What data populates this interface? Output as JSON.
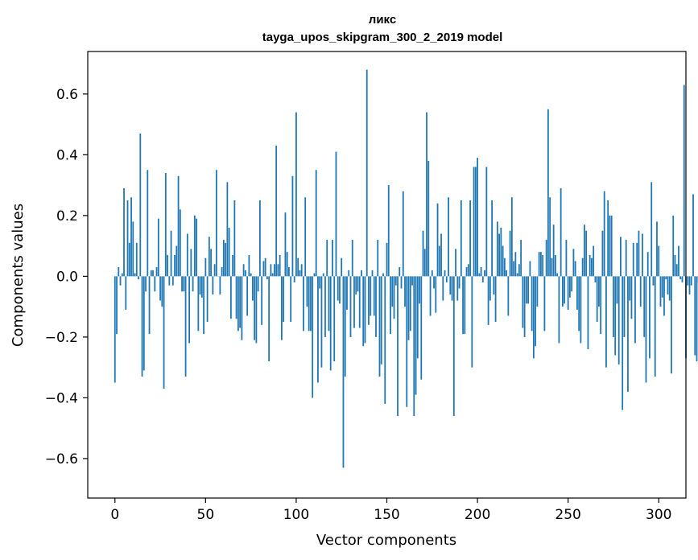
{
  "chart_data": {
    "type": "bar",
    "title": "ликс",
    "subtitle": "tayga_upos_skipgram_300_2_2019 model",
    "xlabel": "Vector components",
    "ylabel": "Components values",
    "xlim": [
      -15,
      315
    ],
    "ylim": [
      -0.73,
      0.74
    ],
    "xticks": [
      0,
      50,
      100,
      150,
      200,
      250,
      300
    ],
    "xtick_labels": [
      "0",
      "50",
      "100",
      "150",
      "200",
      "250",
      "300"
    ],
    "yticks": [
      -0.6,
      -0.4,
      -0.2,
      0.0,
      0.2,
      0.4,
      0.6
    ],
    "ytick_labels": [
      "−0.6",
      "−0.4",
      "−0.2",
      "0.0",
      "0.2",
      "0.4",
      "0.6"
    ],
    "bar_color": "#1f77b4",
    "values": [
      -0.35,
      -0.19,
      0.03,
      -0.03,
      0.01,
      0.29,
      -0.11,
      0.25,
      0.11,
      0.26,
      0.18,
      0.01,
      0.11,
      -0.01,
      0.47,
      -0.33,
      -0.31,
      -0.05,
      0.35,
      -0.19,
      0.02,
      0.02,
      -0.05,
      0.03,
      0.19,
      -0.08,
      -0.1,
      -0.37,
      0.34,
      0.07,
      -0.03,
      0.15,
      -0.03,
      0.07,
      0.1,
      0.33,
      0.22,
      -0.05,
      -0.05,
      -0.33,
      0.14,
      -0.22,
      0.09,
      -0.05,
      0.2,
      0.19,
      -0.18,
      -0.06,
      -0.07,
      -0.19,
      0.06,
      -0.15,
      0.13,
      0.09,
      -0.06,
      0.04,
      0.35,
      0.0,
      -0.06,
      0.03,
      0.12,
      0.11,
      0.31,
      0.16,
      -0.14,
      0.07,
      0.25,
      -0.14,
      -0.18,
      -0.17,
      -0.21,
      0.04,
      0.02,
      -0.13,
      0.07,
      0.01,
      -0.08,
      -0.21,
      -0.22,
      -0.05,
      0.25,
      -0.16,
      0.05,
      0.06,
      -0.01,
      -0.28,
      0.04,
      0.01,
      0.04,
      0.43,
      0.04,
      0.07,
      -0.21,
      -0.15,
      0.21,
      0.08,
      0.03,
      -0.15,
      0.33,
      -0.02,
      0.54,
      0.06,
      0.02,
      0.04,
      -0.18,
      0.26,
      -0.1,
      -0.18,
      -0.18,
      -0.4,
      0.01,
      0.35,
      -0.35,
      -0.04,
      -0.3,
      0.01,
      -0.2,
      0.12,
      -0.18,
      -0.31,
      0.12,
      -0.28,
      0.41,
      -0.08,
      -0.09,
      0.06,
      -0.63,
      -0.33,
      -0.11,
      0.02,
      -0.2,
      0.12,
      -0.17,
      -0.06,
      -0.05,
      -0.17,
      0.02,
      -0.23,
      -0.22,
      0.68,
      -0.16,
      -0.13,
      0.02,
      -0.13,
      -0.2,
      0.12,
      -0.33,
      -0.29,
      0.01,
      -0.42,
      0.11,
      0.3,
      -0.19,
      -0.1,
      -0.14,
      -0.03,
      -0.46,
      0.03,
      -0.04,
      0.28,
      -0.1,
      -0.43,
      -0.21,
      -0.18,
      -0.03,
      -0.46,
      -0.39,
      -0.27,
      -0.09,
      -0.34,
      0.15,
      0.09,
      0.54,
      0.38,
      -0.13,
      0.02,
      -0.04,
      -0.12,
      0.24,
      0.1,
      0.14,
      -0.08,
      0.02,
      -0.02,
      0.26,
      -0.06,
      -0.08,
      -0.46,
      0.09,
      -0.08,
      -0.04,
      0.25,
      -0.19,
      -0.19,
      0.03,
      0.04,
      0.25,
      -0.3,
      0.36,
      0.36,
      0.39,
      0.01,
      0.03,
      -0.02,
      0.02,
      0.36,
      -0.16,
      -0.08,
      0.25,
      -0.06,
      -0.15,
      0.18,
      0.14,
      0.16,
      0.1,
      0.06,
      0.02,
      -0.13,
      0.15,
      0.26,
      0.05,
      0.08,
      0.01,
      0.04,
      0.12,
      -0.17,
      -0.2,
      -0.09,
      -0.09,
      0.05,
      -0.18,
      -0.27,
      -0.23,
      -0.1,
      0.08,
      0.08,
      0.07,
      -0.18,
      0.12,
      0.55,
      0.26,
      0.06,
      0.17,
      0.07,
      0.01,
      -0.22,
      0.29,
      -0.1,
      -0.09,
      0.12,
      -0.11,
      -0.07,
      -0.05,
      0.09,
      0.05,
      -0.11,
      -0.18,
      -0.22,
      0.06,
      0.17,
      0.15,
      -0.24,
      0.07,
      0.06,
      0.1,
      -0.02,
      -0.15,
      -0.1,
      -0.19,
      0.15,
      0.28,
      -0.3,
      0.25,
      0.2,
      0.2,
      -0.2,
      -0.26,
      -0.09,
      -0.29,
      0.13,
      -0.44,
      -0.2,
      0.12,
      -0.38,
      -0.08,
      -0.14,
      0.11,
      -0.22,
      0.11,
      0.15,
      -0.1,
      0.14,
      -0.2,
      -0.35,
      0.08,
      -0.27,
      0.31,
      -0.03,
      -0.33,
      0.18,
      0.1,
      -0.1,
      -0.07,
      -0.13,
      -0.01,
      -0.06,
      -0.08,
      -0.32,
      0.2,
      0.07,
      0.04,
      0.1,
      -0.01,
      -0.02,
      0.63,
      -0.27,
      -0.03,
      -0.06,
      -0.03,
      0.27,
      -0.26,
      -0.28,
      -0.02,
      -0.14,
      -0.26
    ]
  }
}
